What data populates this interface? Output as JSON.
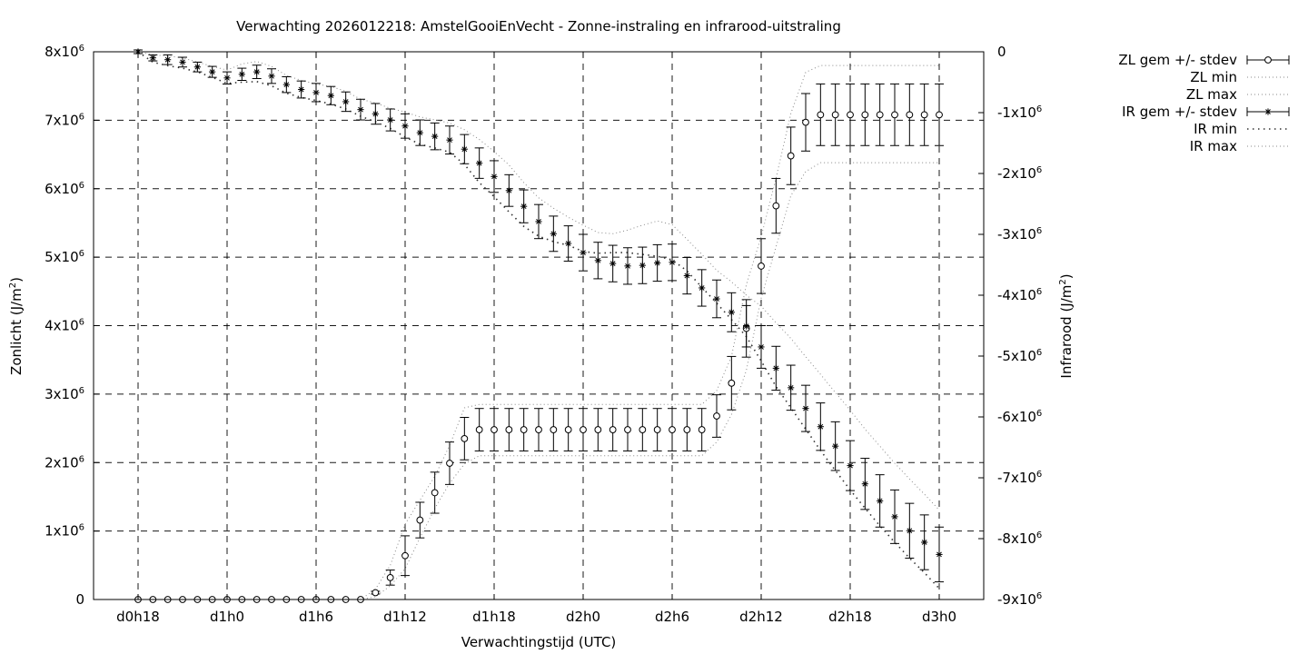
{
  "chart_data": {
    "type": "line",
    "title": "Verwachting 2026012218: AmstelGooiEnVecht - Zonne-instraling en infrarood-uitstraling",
    "xlabel": "Verwachtingstijd (UTC)",
    "ylabel_left": "Zonlicht (J/m²)",
    "ylabel_right": "Infrarood (J/m²)",
    "x_unit": "hours since d0h0",
    "x_range": [
      15,
      75
    ],
    "x_ticks": [
      {
        "x": 18,
        "label": "d0h18"
      },
      {
        "x": 24,
        "label": "d1h0"
      },
      {
        "x": 30,
        "label": "d1h6"
      },
      {
        "x": 36,
        "label": "d1h12"
      },
      {
        "x": 42,
        "label": "d1h18"
      },
      {
        "x": 48,
        "label": "d2h0"
      },
      {
        "x": 54,
        "label": "d2h6"
      },
      {
        "x": 60,
        "label": "d2h12"
      },
      {
        "x": 66,
        "label": "d2h18"
      },
      {
        "x": 72,
        "label": "d3h0"
      }
    ],
    "y_left_range": [
      0,
      8000000
    ],
    "y_left_ticks": [
      {
        "v": 0,
        "m": "0",
        "e": ""
      },
      {
        "v": 1000000,
        "m": "1x10",
        "e": "6"
      },
      {
        "v": 2000000,
        "m": "2x10",
        "e": "6"
      },
      {
        "v": 3000000,
        "m": "3x10",
        "e": "6"
      },
      {
        "v": 4000000,
        "m": "4x10",
        "e": "6"
      },
      {
        "v": 5000000,
        "m": "5x10",
        "e": "6"
      },
      {
        "v": 6000000,
        "m": "6x10",
        "e": "6"
      },
      {
        "v": 7000000,
        "m": "7x10",
        "e": "6"
      },
      {
        "v": 8000000,
        "m": "8x10",
        "e": "6"
      }
    ],
    "y_right_range": [
      -9000000,
      0
    ],
    "y_right_ticks": [
      {
        "v": 0,
        "m": "0",
        "e": ""
      },
      {
        "v": -1000000,
        "m": "-1x10",
        "e": "6"
      },
      {
        "v": -2000000,
        "m": "-2x10",
        "e": "6"
      },
      {
        "v": -3000000,
        "m": "-3x10",
        "e": "6"
      },
      {
        "v": -4000000,
        "m": "-4x10",
        "e": "6"
      },
      {
        "v": -5000000,
        "m": "-5x10",
        "e": "6"
      },
      {
        "v": -6000000,
        "m": "-6x10",
        "e": "6"
      },
      {
        "v": -7000000,
        "m": "-7x10",
        "e": "6"
      },
      {
        "v": -8000000,
        "m": "-8x10",
        "e": "6"
      },
      {
        "v": -9000000,
        "m": "-9x10",
        "e": "6"
      }
    ],
    "grid": true,
    "legend_position": "top-right outside",
    "legend": [
      "ZL gem +/- stdev",
      "ZL min",
      "ZL max",
      "IR gem +/- stdev",
      "IR min",
      "IR max"
    ],
    "x": [
      18,
      19,
      20,
      21,
      22,
      23,
      24,
      25,
      26,
      27,
      28,
      29,
      30,
      31,
      32,
      33,
      34,
      35,
      36,
      37,
      38,
      39,
      40,
      41,
      42,
      43,
      44,
      45,
      46,
      47,
      48,
      49,
      50,
      51,
      52,
      53,
      54,
      55,
      56,
      57,
      58,
      59,
      60,
      61,
      62,
      63,
      64,
      65,
      66,
      67,
      68,
      69,
      70,
      71,
      72
    ],
    "series": [
      {
        "name": "ZL gem +/- stdev",
        "axis": "left",
        "marker": "circle",
        "mean": [
          0,
          0,
          0,
          0,
          0,
          0,
          0,
          0,
          0,
          0,
          0,
          0,
          0,
          0,
          0,
          0,
          100000,
          320000,
          640000,
          1160000,
          1560000,
          1990000,
          2350000,
          2480000,
          2480000,
          2480000,
          2480000,
          2480000,
          2480000,
          2480000,
          2480000,
          2480000,
          2480000,
          2480000,
          2480000,
          2480000,
          2480000,
          2480000,
          2480000,
          2680000,
          3160000,
          3960000,
          4870000,
          5750000,
          6480000,
          6970000,
          7080000,
          7080000,
          7080000,
          7080000,
          7080000,
          7080000,
          7080000,
          7080000,
          7080000
        ],
        "stdev": [
          0,
          0,
          0,
          0,
          0,
          0,
          0,
          0,
          0,
          0,
          0,
          0,
          0,
          0,
          0,
          0,
          20000,
          110000,
          290000,
          260000,
          300000,
          310000,
          310000,
          310000,
          310000,
          310000,
          310000,
          310000,
          310000,
          310000,
          310000,
          310000,
          310000,
          310000,
          310000,
          310000,
          310000,
          310000,
          310000,
          310000,
          390000,
          420000,
          400000,
          400000,
          420000,
          420000,
          450000,
          450000,
          450000,
          450000,
          450000,
          450000,
          450000,
          450000,
          450000
        ]
      },
      {
        "name": "ZL min",
        "axis": "left",
        "values": [
          0,
          0,
          0,
          0,
          0,
          0,
          0,
          0,
          0,
          0,
          0,
          0,
          0,
          0,
          0,
          0,
          40000,
          200000,
          450000,
          900000,
          1330000,
          1700000,
          1980000,
          2100000,
          2100000,
          2100000,
          2100000,
          2100000,
          2100000,
          2100000,
          2100000,
          2100000,
          2100000,
          2100000,
          2100000,
          2100000,
          2100000,
          2100000,
          2100000,
          2300000,
          2700000,
          3350000,
          4400000,
          5150000,
          5900000,
          6250000,
          6380000,
          6380000,
          6380000,
          6380000,
          6380000,
          6380000,
          6380000,
          6380000,
          6380000
        ]
      },
      {
        "name": "ZL max",
        "axis": "left",
        "values": [
          0,
          0,
          0,
          0,
          0,
          0,
          0,
          0,
          0,
          0,
          0,
          0,
          0,
          0,
          0,
          0,
          150000,
          500000,
          1100000,
          1450000,
          1800000,
          2250000,
          2800000,
          2850000,
          2850000,
          2850000,
          2850000,
          2850000,
          2850000,
          2850000,
          2850000,
          2850000,
          2850000,
          2850000,
          2850000,
          2850000,
          2850000,
          2850000,
          2850000,
          3050000,
          3550000,
          4600000,
          5300000,
          6150000,
          7100000,
          7700000,
          7800000,
          7800000,
          7800000,
          7800000,
          7800000,
          7800000,
          7800000,
          7800000,
          7800000
        ]
      },
      {
        "name": "IR gem +/- stdev",
        "axis": "right",
        "marker": "star",
        "mean": [
          0,
          -100000,
          -130000,
          -170000,
          -250000,
          -330000,
          -430000,
          -370000,
          -330000,
          -400000,
          -540000,
          -620000,
          -670000,
          -720000,
          -820000,
          -950000,
          -1020000,
          -1120000,
          -1220000,
          -1330000,
          -1390000,
          -1450000,
          -1600000,
          -1830000,
          -2050000,
          -2280000,
          -2540000,
          -2790000,
          -2990000,
          -3150000,
          -3300000,
          -3430000,
          -3480000,
          -3520000,
          -3510000,
          -3470000,
          -3460000,
          -3680000,
          -3880000,
          -4060000,
          -4280000,
          -4510000,
          -4850000,
          -5200000,
          -5520000,
          -5860000,
          -6160000,
          -6480000,
          -6800000,
          -7100000,
          -7380000,
          -7640000,
          -7870000,
          -8060000,
          -8260000
        ],
        "stdev": [
          30000,
          50000,
          80000,
          80000,
          80000,
          90000,
          100000,
          100000,
          110000,
          120000,
          130000,
          140000,
          150000,
          150000,
          160000,
          170000,
          170000,
          180000,
          200000,
          210000,
          220000,
          230000,
          240000,
          250000,
          260000,
          260000,
          270000,
          280000,
          290000,
          290000,
          300000,
          300000,
          300000,
          300000,
          300000,
          300000,
          300000,
          300000,
          300000,
          310000,
          320000,
          340000,
          350000,
          360000,
          370000,
          380000,
          390000,
          400000,
          410000,
          420000,
          430000,
          440000,
          450000,
          450000,
          450000
        ]
      },
      {
        "name": "IR min",
        "axis": "right",
        "values": [
          0,
          -170000,
          -230000,
          -270000,
          -330000,
          -420000,
          -520000,
          -500000,
          -490000,
          -560000,
          -680000,
          -750000,
          -800000,
          -860000,
          -940000,
          -1060000,
          -1150000,
          -1260000,
          -1400000,
          -1520000,
          -1580000,
          -1650000,
          -1850000,
          -2150000,
          -2380000,
          -2630000,
          -2870000,
          -3030000,
          -3120000,
          -3180000,
          -3280000,
          -3310000,
          -3300000,
          -3300000,
          -3330000,
          -3360000,
          -3420000,
          -3600000,
          -3870000,
          -4130000,
          -4400000,
          -4680000,
          -5080000,
          -5500000,
          -5850000,
          -6200000,
          -6550000,
          -6880000,
          -7200000,
          -7500000,
          -7790000,
          -8060000,
          -8320000,
          -8560000,
          -8820000
        ]
      },
      {
        "name": "IR max",
        "axis": "right",
        "values": [
          0,
          -50000,
          -70000,
          -100000,
          -170000,
          -240000,
          -300000,
          -200000,
          -160000,
          -240000,
          -390000,
          -470000,
          -530000,
          -570000,
          -650000,
          -780000,
          -840000,
          -930000,
          -990000,
          -1070000,
          -1120000,
          -1170000,
          -1280000,
          -1440000,
          -1640000,
          -1860000,
          -2150000,
          -2400000,
          -2570000,
          -2720000,
          -2850000,
          -2970000,
          -2990000,
          -2930000,
          -2850000,
          -2780000,
          -2840000,
          -3080000,
          -3330000,
          -3590000,
          -3780000,
          -4000000,
          -4180000,
          -4450000,
          -4710000,
          -5010000,
          -5300000,
          -5600000,
          -5890000,
          -6200000,
          -6480000,
          -6760000,
          -7020000,
          -7270000,
          -7530000
        ]
      }
    ]
  }
}
